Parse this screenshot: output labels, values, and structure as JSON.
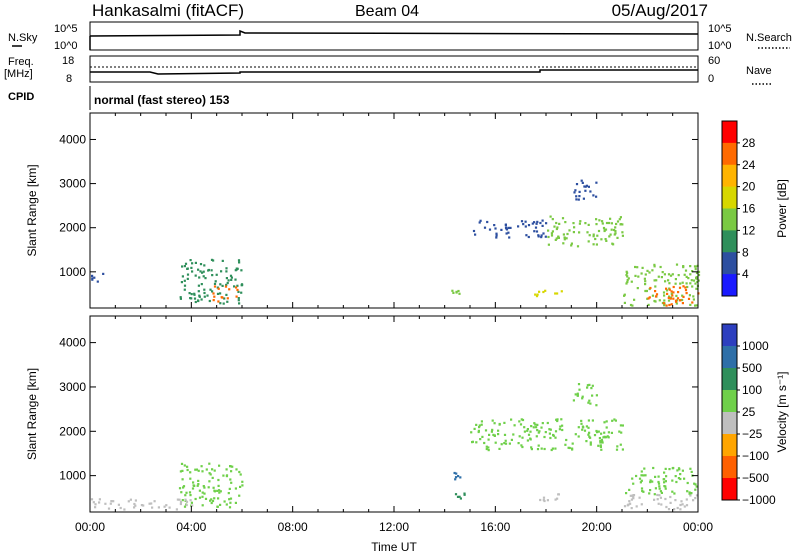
{
  "header": {
    "station": "Hankasalmi (fitACF)",
    "beam": "Beam 04",
    "date": "05/Aug/2017"
  },
  "top_panels": {
    "nsky_label": "N.Sky",
    "nsearch_label": "N.Search",
    "nsky_ticks": [
      "10^5",
      "10^0"
    ],
    "freq_label": "Freq.",
    "freq_unit": "[MHz]",
    "freq_ticks": [
      "18",
      "8"
    ],
    "nave_label": "Nave",
    "nave_ticks": [
      "60",
      "0"
    ],
    "cpid_label": "CPID",
    "cpid_text": "normal (fast stereo) 153"
  },
  "chart_data": [
    {
      "type": "heatmap",
      "quantity": "Power",
      "ylabel": "Slant Range [km]",
      "xlabel": "Time UT",
      "x_ticks": [
        "00:00",
        "04:00",
        "08:00",
        "12:00",
        "16:00",
        "20:00",
        "00:00"
      ],
      "y_ticks": [
        1000,
        2000,
        3000,
        4000
      ],
      "ylim": [
        180,
        4600
      ],
      "colorbar_label": "Power [dB]",
      "colorbar_ticks": [
        "28",
        "24",
        "20",
        "16",
        "12",
        "8",
        "4"
      ],
      "colorbar_colors": [
        "#ff0000",
        "#ff6a00",
        "#ffb400",
        "#d7d700",
        "#7ac943",
        "#2f8f5b",
        "#2d4fa0",
        "#1a1aff"
      ],
      "regions": [
        {
          "t0": 0.0,
          "t1": 0.6,
          "r0": 800,
          "r1": 1000,
          "level": 1
        },
        {
          "t0": 3.5,
          "t1": 6.0,
          "r0": 300,
          "r1": 1300,
          "level": 2
        },
        {
          "t0": 4.8,
          "t1": 5.8,
          "r0": 350,
          "r1": 700,
          "level": 6
        },
        {
          "t0": 14.2,
          "t1": 14.8,
          "r0": 500,
          "r1": 650,
          "level": 3
        },
        {
          "t0": 17.5,
          "t1": 18.6,
          "r0": 450,
          "r1": 650,
          "level": 4
        },
        {
          "t0": 15.0,
          "t1": 18.0,
          "r0": 1800,
          "r1": 2200,
          "level": 1
        },
        {
          "t0": 18.0,
          "t1": 21.0,
          "r0": 1600,
          "r1": 2300,
          "level": 3
        },
        {
          "t0": 19.0,
          "t1": 20.0,
          "r0": 2600,
          "r1": 3100,
          "level": 1
        },
        {
          "t0": 21.0,
          "t1": 24.0,
          "r0": 250,
          "r1": 1200,
          "level": 3
        },
        {
          "t0": 22.0,
          "t1": 24.0,
          "r0": 250,
          "r1": 700,
          "level": 6
        }
      ]
    },
    {
      "type": "heatmap",
      "quantity": "Velocity",
      "ylabel": "Slant Range [km]",
      "xlabel": "Time UT",
      "x_ticks": [
        "00:00",
        "04:00",
        "08:00",
        "12:00",
        "16:00",
        "20:00",
        "00:00"
      ],
      "y_ticks": [
        1000,
        2000,
        3000,
        4000
      ],
      "ylim": [
        180,
        4600
      ],
      "colorbar_label": "Velocity [m s⁻¹]",
      "colorbar_ticks": [
        "1000",
        "500",
        "100",
        "25",
        "−25",
        "−100",
        "−500",
        "−1000"
      ],
      "colorbar_colors": [
        "#2d3fbf",
        "#2e6fa8",
        "#2f8f5b",
        "#6fd04a",
        "#bfbfbf",
        "#ffa500",
        "#ff6000",
        "#ff0000"
      ],
      "regions": [
        {
          "t0": 3.5,
          "t1": 6.0,
          "r0": 300,
          "r1": 1300,
          "level": 4
        },
        {
          "t0": 0.0,
          "t1": 4.0,
          "r0": 250,
          "r1": 500,
          "level": 3
        },
        {
          "t0": 14.2,
          "t1": 14.8,
          "r0": 500,
          "r1": 650,
          "level": 5
        },
        {
          "t0": 14.3,
          "t1": 14.6,
          "r0": 900,
          "r1": 1150,
          "level": 6
        },
        {
          "t0": 17.5,
          "t1": 18.6,
          "r0": 450,
          "r1": 650,
          "level": 3
        },
        {
          "t0": 15.0,
          "t1": 21.0,
          "r0": 1600,
          "r1": 2300,
          "level": 4
        },
        {
          "t0": 19.0,
          "t1": 20.0,
          "r0": 2600,
          "r1": 3100,
          "level": 4
        },
        {
          "t0": 21.0,
          "t1": 24.0,
          "r0": 600,
          "r1": 1200,
          "level": 4
        },
        {
          "t0": 21.0,
          "t1": 24.0,
          "r0": 250,
          "r1": 600,
          "level": 3
        }
      ]
    }
  ]
}
